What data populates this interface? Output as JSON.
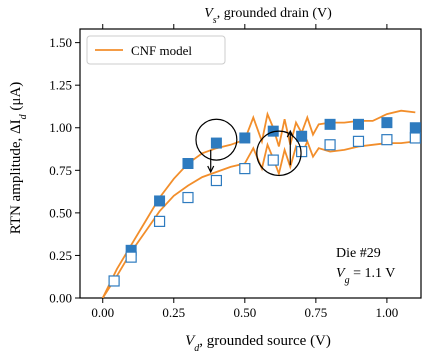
{
  "chart_data": {
    "type": "scatter",
    "xlabel_bottom_main": "V",
    "xlabel_bottom_sub": "d",
    "xlabel_bottom_rest": ", grounded source (V)",
    "xlabel_top_main": "V",
    "xlabel_top_sub": "s",
    "xlabel_top_rest": ", grounded drain (V)",
    "ylabel": "RTN amplitude, ΔI",
    "ylabel_sub": "d",
    "ylabel_rest": " (μA)",
    "xlim": [
      -0.08,
      1.12
    ],
    "ylim": [
      0.0,
      1.58
    ],
    "xticks": [
      0.0,
      0.25,
      0.5,
      0.75,
      1.0
    ],
    "xtick_labels": [
      "0.00",
      "0.25",
      "0.50",
      "0.75",
      "1.00"
    ],
    "yticks": [
      0.0,
      0.25,
      0.5,
      0.75,
      1.0,
      1.25,
      1.5
    ],
    "ytick_labels": [
      "0.00",
      "0.25",
      "0.50",
      "0.75",
      "1.00",
      "1.25",
      "1.50"
    ],
    "legend": {
      "label": "CNF model",
      "position": "top-left"
    },
    "annotation_line1": "Die #29",
    "annotation_line2_main": "V",
    "annotation_line2_sub": "g",
    "annotation_line2_rest": " = 1.1 V",
    "colors": {
      "filled": "#2e7bbf",
      "open": "#2e7bbf",
      "model": "#f28e2b"
    },
    "series": [
      {
        "marker": "filled-square",
        "x": [
          0.1,
          0.2,
          0.3,
          0.4,
          0.5,
          0.6,
          0.7,
          0.8,
          0.9,
          1.0,
          1.1
        ],
        "y": [
          0.28,
          0.57,
          0.79,
          0.91,
          0.94,
          0.98,
          0.95,
          1.02,
          1.02,
          1.03,
          1.0
        ]
      },
      {
        "marker": "open-square",
        "x": [
          0.04,
          0.1,
          0.2,
          0.3,
          0.4,
          0.5,
          0.6,
          0.7,
          0.8,
          0.9,
          1.0,
          1.1
        ],
        "y": [
          0.1,
          0.24,
          0.45,
          0.59,
          0.69,
          0.76,
          0.81,
          0.86,
          0.9,
          0.92,
          0.93,
          0.94
        ]
      },
      {
        "name": "CNF model",
        "marker": "line",
        "x": [
          0.0,
          0.05,
          0.1,
          0.15,
          0.2,
          0.25,
          0.3,
          0.35,
          0.4,
          0.45,
          0.5,
          0.53,
          0.56,
          0.58,
          0.6,
          0.62,
          0.64,
          0.66,
          0.68,
          0.7,
          0.72,
          0.74,
          0.76,
          0.8,
          0.85,
          0.9,
          0.95,
          1.0,
          1.05,
          1.1
        ],
        "y": [
          0.0,
          0.17,
          0.31,
          0.45,
          0.59,
          0.7,
          0.79,
          0.85,
          0.88,
          0.9,
          0.93,
          1.06,
          0.92,
          1.08,
          1.0,
          0.89,
          1.05,
          0.9,
          1.03,
          0.97,
          1.06,
          0.96,
          1.02,
          1.03,
          1.03,
          1.04,
          1.04,
          1.08,
          1.1,
          1.09
        ]
      },
      {
        "marker": "line",
        "x": [
          0.0,
          0.05,
          0.1,
          0.15,
          0.2,
          0.25,
          0.3,
          0.35,
          0.4,
          0.45,
          0.5,
          0.53,
          0.56,
          0.58,
          0.6,
          0.62,
          0.64,
          0.66,
          0.68,
          0.7,
          0.72,
          0.74,
          0.76,
          0.8,
          0.85,
          0.9,
          0.95,
          1.0,
          1.05,
          1.1
        ],
        "y": [
          0.0,
          0.13,
          0.27,
          0.39,
          0.51,
          0.6,
          0.66,
          0.71,
          0.74,
          0.77,
          0.79,
          0.88,
          0.76,
          0.9,
          0.82,
          0.73,
          0.87,
          0.77,
          0.89,
          0.84,
          0.92,
          0.83,
          0.88,
          0.86,
          0.87,
          0.89,
          0.9,
          0.91,
          0.91,
          0.92
        ]
      }
    ],
    "circles": [
      {
        "x": 0.4,
        "y": 0.93,
        "r_data_y": 0.12
      },
      {
        "x": 0.62,
        "y": 0.85,
        "r_data_y": 0.13
      }
    ],
    "arrows": [
      {
        "x": 0.38,
        "y0": 0.87,
        "y1": 0.74
      },
      {
        "x": 0.66,
        "y0": 0.78,
        "y1": 0.98
      }
    ]
  }
}
